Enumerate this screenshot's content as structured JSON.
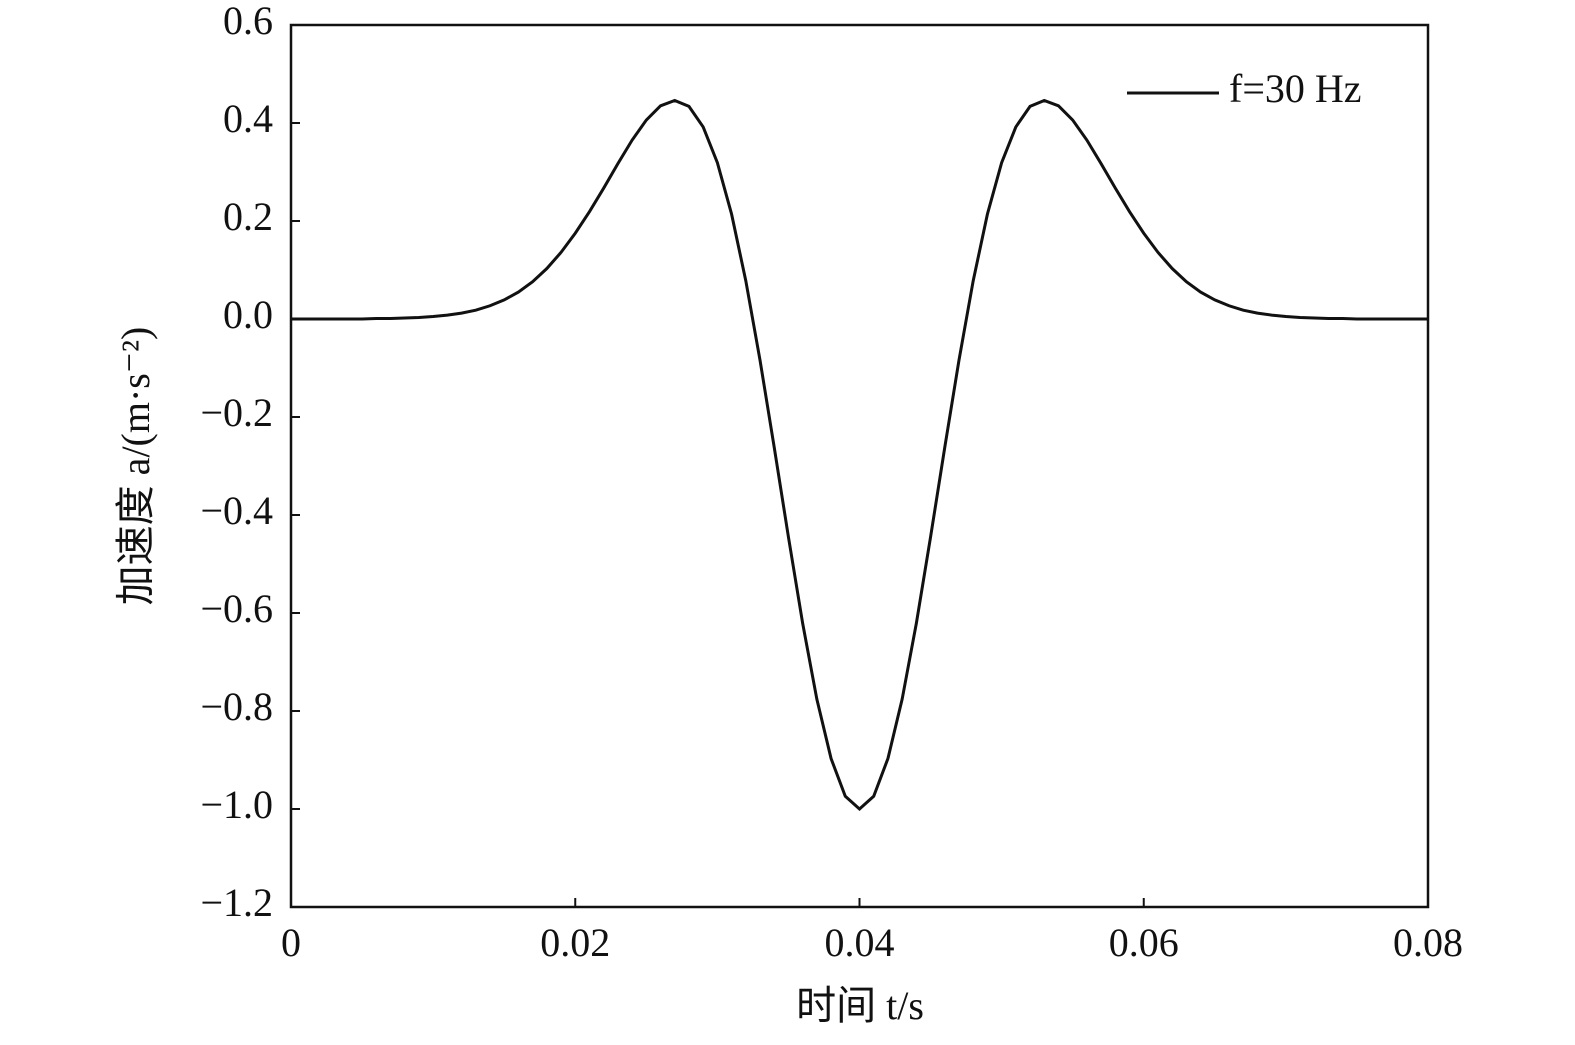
{
  "chart_data": {
    "type": "line",
    "xlabel": "时间 t/s",
    "ylabel": "加速度 a/(m·s⁻²)",
    "x": [
      0,
      0.001,
      0.002,
      0.003,
      0.004,
      0.005,
      0.006,
      0.007,
      0.008,
      0.009,
      0.01,
      0.011,
      0.012,
      0.013,
      0.014,
      0.015,
      0.016,
      0.017,
      0.018,
      0.019,
      0.02,
      0.021,
      0.022,
      0.023,
      0.024,
      0.025,
      0.026,
      0.027,
      0.028,
      0.029,
      0.03,
      0.031,
      0.032,
      0.033,
      0.034,
      0.035,
      0.036,
      0.037,
      0.038,
      0.039,
      0.04,
      0.041,
      0.042,
      0.043,
      0.044,
      0.045,
      0.046,
      0.047,
      0.048,
      0.049,
      0.05,
      0.051,
      0.052,
      0.053,
      0.054,
      0.055,
      0.056,
      0.057,
      0.058,
      0.059,
      0.06,
      0.061,
      0.062,
      0.063,
      0.064,
      0.065,
      0.066,
      0.067,
      0.068,
      0.069,
      0.07,
      0.071,
      0.072,
      0.073,
      0.074,
      0.075,
      0.076,
      0.077,
      0.078,
      0.079,
      0.08
    ],
    "series": [
      {
        "name": "f=30 Hz",
        "color": "#111111",
        "values": [
          0,
          0,
          0,
          0,
          0,
          0,
          0.001,
          0.001,
          0.002,
          0.003,
          0.005,
          0.008,
          0.012,
          0.018,
          0.027,
          0.039,
          0.055,
          0.076,
          0.103,
          0.136,
          0.175,
          0.219,
          0.267,
          0.317,
          0.365,
          0.406,
          0.435,
          0.446,
          0.434,
          0.392,
          0.319,
          0.214,
          0.078,
          -0.084,
          -0.262,
          -0.445,
          -0.621,
          -0.776,
          -0.897,
          -0.974,
          -1,
          -0.974,
          -0.897,
          -0.776,
          -0.621,
          -0.445,
          -0.262,
          -0.084,
          0.078,
          0.214,
          0.319,
          0.392,
          0.434,
          0.446,
          0.435,
          0.406,
          0.365,
          0.317,
          0.267,
          0.219,
          0.175,
          0.136,
          0.103,
          0.076,
          0.055,
          0.039,
          0.027,
          0.018,
          0.012,
          0.008,
          0.005,
          0.003,
          0.002,
          0.001,
          0.001,
          0,
          0,
          0,
          0,
          0,
          0
        ]
      }
    ],
    "xlim": [
      0,
      0.08
    ],
    "xticks": [
      0,
      0.02,
      0.04,
      0.06,
      0.08
    ],
    "ylim": [
      -1.2,
      0.6
    ],
    "yticks": [
      {
        "value": -1.2,
        "label": "−1.2"
      },
      {
        "value": -1.0,
        "label": "−1.0"
      },
      {
        "value": -0.8,
        "label": "−0.8"
      },
      {
        "value": -0.6,
        "label": "−0.6"
      },
      {
        "value": -0.4,
        "label": "−0.4"
      },
      {
        "value": -0.2,
        "label": "−0.2"
      },
      {
        "value": 0,
        "label": "0.0"
      },
      0.2,
      0.4,
      0.6
    ],
    "grid": false,
    "legend": "upper right"
  }
}
